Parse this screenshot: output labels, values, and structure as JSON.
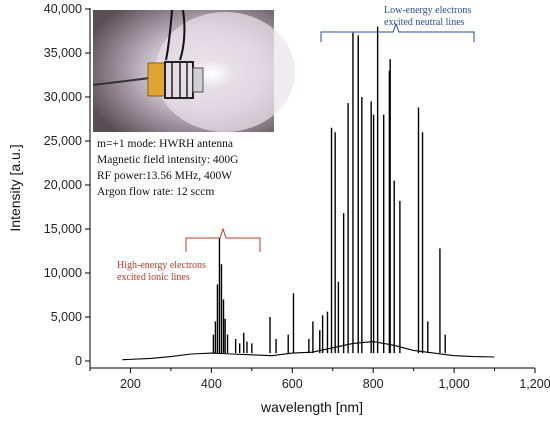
{
  "chart_data": {
    "type": "line",
    "xlabel": "wavelength [nm]",
    "ylabel": "Intensity [a.u.]",
    "xlim": [
      100,
      1200
    ],
    "ylim": [
      0,
      40000
    ],
    "x_ticks": [
      "200",
      "400",
      "600",
      "800",
      "1,000",
      "1,200"
    ],
    "y_ticks": [
      "0",
      "5,000",
      "10,000",
      "15,000",
      "20,000",
      "25,000",
      "30,000",
      "35,000",
      "40,000"
    ],
    "grid": false,
    "series": [
      {
        "color": "#000000",
        "points": [
          [
            180,
            150
          ],
          [
            250,
            300
          ],
          [
            300,
            500
          ],
          [
            350,
            800
          ],
          [
            400,
            900
          ],
          [
            450,
            800
          ],
          [
            500,
            700
          ],
          [
            550,
            600
          ],
          [
            600,
            900
          ],
          [
            650,
            1000
          ],
          [
            700,
            1500
          ],
          [
            750,
            2000
          ],
          [
            800,
            2200
          ],
          [
            850,
            1800
          ],
          [
            900,
            1200
          ],
          [
            950,
            900
          ],
          [
            1000,
            600
          ],
          [
            1050,
            500
          ],
          [
            1100,
            450
          ]
        ],
        "lines": [
          [
            405,
            3000
          ],
          [
            410,
            4500
          ],
          [
            415,
            8700
          ],
          [
            420,
            14000
          ],
          [
            425,
            11000
          ],
          [
            430,
            7000
          ],
          [
            434,
            4800
          ],
          [
            440,
            3000
          ],
          [
            460,
            2500
          ],
          [
            470,
            2000
          ],
          [
            480,
            3200
          ],
          [
            488,
            2200
          ],
          [
            500,
            2000
          ],
          [
            545,
            5000
          ],
          [
            560,
            2500
          ],
          [
            590,
            3000
          ],
          [
            603,
            7700
          ],
          [
            641,
            2500
          ],
          [
            651,
            4500
          ],
          [
            668,
            3500
          ],
          [
            675,
            5200
          ],
          [
            687,
            5600
          ],
          [
            697,
            26500
          ],
          [
            706,
            26000
          ],
          [
            714,
            9000
          ],
          [
            727,
            16800
          ],
          [
            738,
            29300
          ],
          [
            750,
            37300
          ],
          [
            763,
            37000
          ],
          [
            772,
            30000
          ],
          [
            795,
            29500
          ],
          [
            801,
            28000
          ],
          [
            811,
            38000
          ],
          [
            826,
            28000
          ],
          [
            840,
            33000
          ],
          [
            842,
            34300
          ],
          [
            852,
            20500
          ],
          [
            866,
            18200
          ],
          [
            912,
            28800
          ],
          [
            922,
            26000
          ],
          [
            935,
            4500
          ],
          [
            965,
            12800
          ],
          [
            978,
            3000
          ]
        ]
      }
    ],
    "annotations": {
      "settings": [
        "m=+1 mode: HWRH antenna",
        "Magnetic field intensity: 400G",
        "RF power:13.56 MHz, 400W",
        "Argon flow rate: 12 sccm"
      ],
      "high_energy": [
        "High-energy electrons",
        "excited ionic lines"
      ],
      "low_energy": [
        "Low-energy electrons",
        "excited neutral lines"
      ]
    }
  },
  "colors": {
    "blue_note": "#2d4b9a",
    "red_note": "#c0392b",
    "trace": "#000000"
  }
}
